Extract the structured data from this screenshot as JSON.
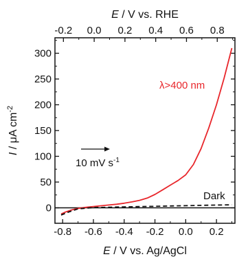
{
  "chart_data": {
    "type": "line",
    "xlabel": "E / V vs. Ag/AgCl",
    "xlabel_top": "E / V vs. RHE",
    "ylabel": "I / μA cm-2",
    "xlim": [
      -0.85,
      0.32
    ],
    "ylim": [
      -30,
      330
    ],
    "top_xlim": [
      -0.255,
      0.915
    ],
    "x_ticks": [
      -0.8,
      -0.6,
      -0.4,
      -0.2,
      0.0,
      0.2
    ],
    "x_tick_labels": [
      "-0.8",
      "-0.6",
      "-0.4",
      "-0.2",
      "0.0",
      "0.2"
    ],
    "top_x_ticks": [
      -0.2,
      0.0,
      0.2,
      0.4,
      0.6,
      0.8
    ],
    "top_x_tick_labels": [
      "-0.2",
      "0.0",
      "0.2",
      "0.4",
      "0.6",
      "0.8"
    ],
    "y_ticks": [
      0,
      50,
      100,
      150,
      200,
      250,
      300
    ],
    "y_tick_labels": [
      "0",
      "50",
      "100",
      "150",
      "200",
      "250",
      "300"
    ],
    "zero_line": true,
    "grid": false,
    "series": [
      {
        "name": "λ>400 nm",
        "color": "#e8262b",
        "style": "solid",
        "x": [
          -0.81,
          -0.78,
          -0.74,
          -0.7,
          -0.65,
          -0.6,
          -0.55,
          -0.5,
          -0.45,
          -0.4,
          -0.35,
          -0.3,
          -0.25,
          -0.2,
          -0.15,
          -0.1,
          -0.05,
          0.0,
          0.05,
          0.1,
          0.15,
          0.2,
          0.25,
          0.3
        ],
        "y": [
          -12,
          -8,
          -4,
          -1,
          1,
          2.5,
          4,
          5.5,
          7,
          9,
          11.5,
          14.5,
          19,
          26,
          35,
          44,
          53,
          64,
          84,
          115,
          155,
          200,
          252,
          310
        ]
      },
      {
        "name": "Dark",
        "color": "#111111",
        "style": "dashed",
        "x": [
          -0.81,
          -0.76,
          -0.7,
          -0.6,
          -0.5,
          -0.4,
          -0.3,
          -0.2,
          -0.1,
          0.0,
          0.1,
          0.2,
          0.3
        ],
        "y": [
          -14,
          -8,
          -2,
          0.5,
          1.2,
          1.8,
          2.4,
          3,
          3.6,
          4.2,
          4.8,
          5.3,
          5.8
        ]
      }
    ],
    "annotations": {
      "light_label": "λ>400 nm",
      "dark_label": "Dark",
      "scan_rate_label": "10 mV s-1"
    }
  }
}
